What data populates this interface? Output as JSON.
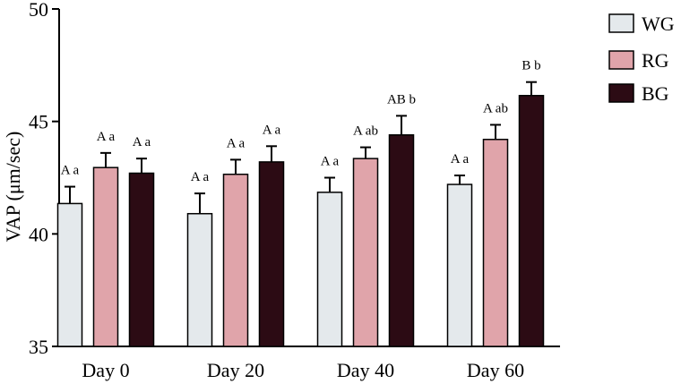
{
  "chart_data": {
    "type": "bar",
    "title": "",
    "xlabel": "",
    "ylabel": "VAP (μm/sec)",
    "ylim": [
      35,
      50
    ],
    "yticks": [
      35,
      40,
      45,
      50
    ],
    "categories": [
      "Day 0",
      "Day 20",
      "Day 40",
      "Day 60"
    ],
    "legend_position": "top-right",
    "series": [
      {
        "name": "WG",
        "color": "#e4e9ec",
        "values": [
          41.35,
          40.9,
          41.85,
          42.2
        ],
        "errors": [
          0.75,
          0.9,
          0.65,
          0.4
        ],
        "labels": [
          "A a",
          "A a",
          "A a",
          "A a"
        ]
      },
      {
        "name": "RG",
        "color": "#e0a4aa",
        "values": [
          42.95,
          42.65,
          43.35,
          44.2
        ],
        "errors": [
          0.65,
          0.65,
          0.5,
          0.65
        ],
        "labels": [
          "A a",
          "A a",
          "A ab",
          "A ab"
        ]
      },
      {
        "name": "BG",
        "color": "#2c0b14",
        "values": [
          42.7,
          43.2,
          44.4,
          46.15
        ],
        "errors": [
          0.65,
          0.7,
          0.85,
          0.6
        ],
        "labels": [
          "A a",
          "A a",
          "AB b",
          "B b"
        ]
      }
    ]
  }
}
